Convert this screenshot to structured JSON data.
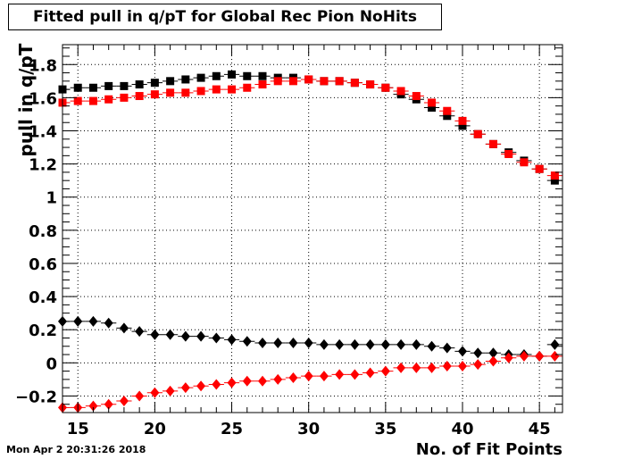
{
  "chart_data": {
    "type": "scatter",
    "title": "Fitted pull in q/pT for Global Rec Pion NoHits",
    "xlabel": "No. of Fit Points",
    "ylabel": "pull in q/pT",
    "xlim": [
      14,
      46.5
    ],
    "ylim": [
      -0.3,
      1.92
    ],
    "xticks": [
      15,
      20,
      25,
      30,
      35,
      40,
      45
    ],
    "yticks": [
      -0.2,
      0,
      0.2,
      0.4,
      0.6,
      0.8,
      1,
      1.2,
      1.4,
      1.6,
      1.8
    ],
    "ytick_labels": [
      "−0.2",
      "0",
      "0.2",
      "0.4",
      "0.6",
      "0.8",
      "1",
      "1.2",
      "1.4",
      "1.6",
      "1.8"
    ],
    "grid": true,
    "x": [
      14,
      15,
      16,
      17,
      18,
      19,
      20,
      21,
      22,
      23,
      24,
      25,
      26,
      27,
      28,
      29,
      30,
      31,
      32,
      33,
      34,
      35,
      36,
      37,
      38,
      39,
      40,
      41,
      42,
      43,
      44,
      45,
      46
    ],
    "series": [
      {
        "marker": "square",
        "color": "#000000",
        "values": [
          1.65,
          1.66,
          1.66,
          1.67,
          1.67,
          1.68,
          1.69,
          1.7,
          1.71,
          1.72,
          1.73,
          1.74,
          1.73,
          1.73,
          1.72,
          1.72,
          1.71,
          1.7,
          1.7,
          1.69,
          1.68,
          1.66,
          1.62,
          1.59,
          1.54,
          1.49,
          1.43,
          1.38,
          1.32,
          1.27,
          1.22,
          1.17,
          1.1
        ]
      },
      {
        "marker": "square",
        "color": "#ff0000",
        "values": [
          1.57,
          1.58,
          1.58,
          1.59,
          1.6,
          1.61,
          1.62,
          1.63,
          1.63,
          1.64,
          1.65,
          1.65,
          1.66,
          1.68,
          1.7,
          1.7,
          1.71,
          1.7,
          1.7,
          1.69,
          1.68,
          1.66,
          1.64,
          1.61,
          1.57,
          1.52,
          1.46,
          1.38,
          1.32,
          1.26,
          1.21,
          1.17,
          1.13
        ]
      },
      {
        "marker": "diamond",
        "color": "#000000",
        "values": [
          0.25,
          0.25,
          0.25,
          0.24,
          0.21,
          0.19,
          0.17,
          0.17,
          0.16,
          0.16,
          0.15,
          0.14,
          0.13,
          0.12,
          0.12,
          0.12,
          0.12,
          0.11,
          0.11,
          0.11,
          0.11,
          0.11,
          0.11,
          0.11,
          0.1,
          0.09,
          0.07,
          0.06,
          0.06,
          0.05,
          0.05,
          0.04,
          0.11
        ]
      },
      {
        "marker": "diamond",
        "color": "#ff0000",
        "values": [
          -0.27,
          -0.27,
          -0.26,
          -0.25,
          -0.23,
          -0.2,
          -0.18,
          -0.17,
          -0.15,
          -0.14,
          -0.13,
          -0.12,
          -0.11,
          -0.11,
          -0.1,
          -0.09,
          -0.08,
          -0.08,
          -0.07,
          -0.07,
          -0.06,
          -0.05,
          -0.03,
          -0.03,
          -0.03,
          -0.02,
          -0.02,
          -0.01,
          0.01,
          0.03,
          0.04,
          0.04,
          0.04
        ]
      }
    ]
  },
  "timestamp": "Mon Apr  2 20:31:26 2018"
}
